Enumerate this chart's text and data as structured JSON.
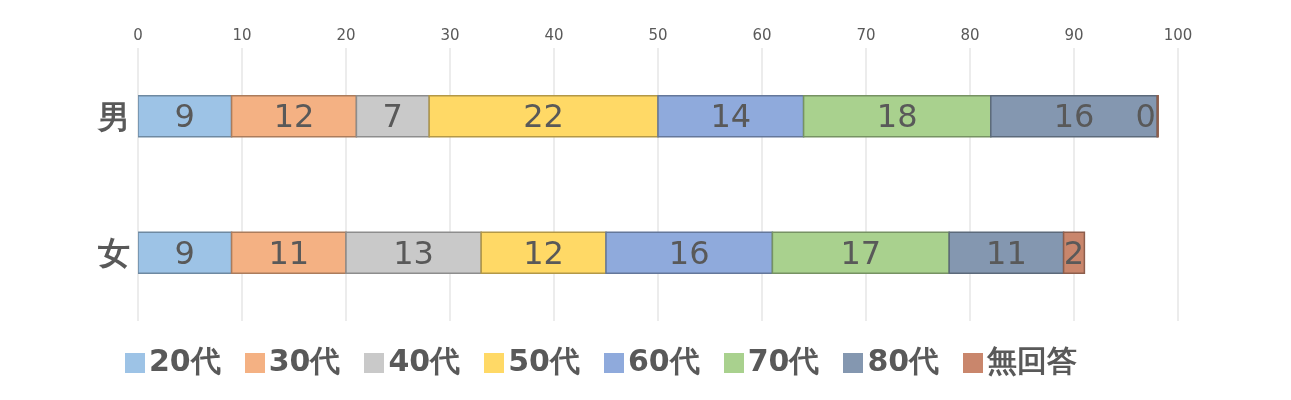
{
  "chart_data": {
    "type": "bar",
    "orientation": "horizontal",
    "stacked": true,
    "categories": [
      "男",
      "女"
    ],
    "series": [
      {
        "name": "20代",
        "color": "#9dc3e6",
        "values": [
          9,
          9
        ]
      },
      {
        "name": "30代",
        "color": "#f4b183",
        "values": [
          12,
          11
        ]
      },
      {
        "name": "40代",
        "color": "#c9c9c9",
        "values": [
          7,
          13
        ]
      },
      {
        "name": "50代",
        "color": "#ffd966",
        "values": [
          22,
          12
        ]
      },
      {
        "name": "60代",
        "color": "#8faadc",
        "values": [
          14,
          16
        ]
      },
      {
        "name": "70代",
        "color": "#a9d18e",
        "values": [
          18,
          17
        ]
      },
      {
        "name": "80代",
        "color": "#8497b0",
        "values": [
          16,
          11
        ]
      },
      {
        "name": "無回答",
        "color": "#c9866c",
        "values": [
          0,
          2
        ]
      }
    ],
    "xlim": [
      0,
      100
    ],
    "xticks": [
      0,
      10,
      20,
      30,
      40,
      50,
      60,
      70,
      80,
      90,
      100
    ],
    "grid": "x",
    "legend": "bottom",
    "data_labels": true
  }
}
